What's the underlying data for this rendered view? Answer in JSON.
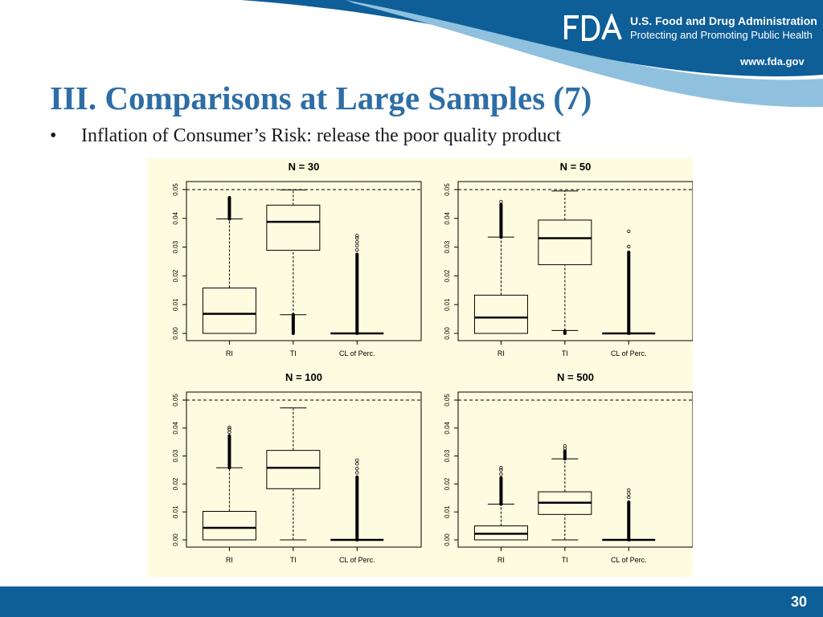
{
  "header": {
    "agency_logo_text": "FDA",
    "agency_name": "U.S. Food and Drug Administration",
    "agency_tagline": "Protecting and Promoting Public Health",
    "website": "www.fda.gov",
    "colors": {
      "band": "#0e5e98",
      "swoosh": "#8fc1de",
      "title": "#2e6ea6"
    }
  },
  "slide": {
    "title": "III. Comparisons at Large Samples (7)",
    "bullet_symbol": "•",
    "bullet": "Inflation of Consumer’s Risk: release the poor quality product",
    "page_number": "30"
  },
  "chart_data": [
    {
      "type": "box",
      "title": "N =  30",
      "categories": [
        "RI",
        "TI",
        "CL of Perc."
      ],
      "ylim": [
        0,
        0.05
      ],
      "yticks": [
        "0.00",
        "0.01",
        "0.02",
        "0.03",
        "0.04",
        "0.05"
      ],
      "reference_line": 0.05,
      "boxes": [
        {
          "category": "RI",
          "lower_whisker": 0.0,
          "q1": 0.0,
          "median": 0.0068,
          "q3": 0.0158,
          "upper_whisker": 0.0398,
          "outliers_from": 0.0398,
          "outliers_to": 0.0472,
          "outliers_side": "upper"
        },
        {
          "category": "TI",
          "lower_whisker": 0.0065,
          "q1": 0.0289,
          "median": 0.0388,
          "q3": 0.0446,
          "upper_whisker": 0.0499,
          "outliers_from": 0.0,
          "outliers_to": 0.0065,
          "outliers_side": "lower"
        },
        {
          "category": "CL of Perc.",
          "lower_whisker": 0.0,
          "q1": 0.0,
          "median": 0.0,
          "q3": 0.0,
          "upper_whisker": 0.0,
          "outliers_from": 0.0,
          "outliers_to": 0.0275,
          "outliers_side": "upper",
          "sparse_outliers": [
            0.029,
            0.0305,
            0.0318,
            0.0332,
            0.034
          ]
        }
      ]
    },
    {
      "type": "box",
      "title": "N =  50",
      "categories": [
        "RI",
        "TI",
        "CL of Perc."
      ],
      "ylim": [
        0,
        0.05
      ],
      "yticks": [
        "0.00",
        "0.01",
        "0.02",
        "0.03",
        "0.04",
        "0.05"
      ],
      "reference_line": 0.05,
      "boxes": [
        {
          "category": "RI",
          "lower_whisker": 0.0,
          "q1": 0.0,
          "median": 0.0055,
          "q3": 0.0133,
          "upper_whisker": 0.0335,
          "outliers_from": 0.0335,
          "outliers_to": 0.0448,
          "outliers_side": "upper",
          "sparse_outliers": [
            0.0458
          ]
        },
        {
          "category": "TI",
          "lower_whisker": 0.001,
          "q1": 0.0239,
          "median": 0.0331,
          "q3": 0.0394,
          "upper_whisker": 0.0495,
          "outliers_from": 0.0,
          "outliers_to": 0.0008,
          "outliers_side": "lower"
        },
        {
          "category": "CL of Perc.",
          "lower_whisker": 0.0,
          "q1": 0.0,
          "median": 0.0,
          "q3": 0.0,
          "upper_whisker": 0.0,
          "outliers_from": 0.0,
          "outliers_to": 0.0282,
          "outliers_side": "upper",
          "sparse_outliers": [
            0.0302,
            0.0355
          ]
        }
      ]
    },
    {
      "type": "box",
      "title": "N =  100",
      "categories": [
        "RI",
        "TI",
        "CL of Perc."
      ],
      "ylim": [
        0,
        0.05
      ],
      "yticks": [
        "0.00",
        "0.01",
        "0.02",
        "0.03",
        "0.04",
        "0.05"
      ],
      "reference_line": 0.05,
      "boxes": [
        {
          "category": "RI",
          "lower_whisker": 0.0,
          "q1": 0.0,
          "median": 0.0043,
          "q3": 0.0102,
          "upper_whisker": 0.0258,
          "outliers_from": 0.0258,
          "outliers_to": 0.0372,
          "outliers_side": "upper",
          "sparse_outliers": [
            0.0385,
            0.0395,
            0.0402
          ]
        },
        {
          "category": "TI",
          "lower_whisker": 0.0,
          "q1": 0.0183,
          "median": 0.0258,
          "q3": 0.032,
          "upper_whisker": 0.0472
        },
        {
          "category": "CL of Perc.",
          "lower_whisker": 0.0,
          "q1": 0.0,
          "median": 0.0,
          "q3": 0.0,
          "upper_whisker": 0.0,
          "outliers_from": 0.0,
          "outliers_to": 0.0225,
          "outliers_side": "upper",
          "sparse_outliers": [
            0.024,
            0.0255,
            0.0272,
            0.0285
          ]
        }
      ]
    },
    {
      "type": "box",
      "title": "N =  500",
      "categories": [
        "RI",
        "TI",
        "CL of Perc."
      ],
      "ylim": [
        0,
        0.05
      ],
      "yticks": [
        "0.00",
        "0.01",
        "0.02",
        "0.03",
        "0.04",
        "0.05"
      ],
      "reference_line": 0.05,
      "boxes": [
        {
          "category": "RI",
          "lower_whisker": 0.0,
          "q1": 0.0,
          "median": 0.0022,
          "q3": 0.005,
          "upper_whisker": 0.0128,
          "outliers_from": 0.0128,
          "outliers_to": 0.0222,
          "outliers_side": "upper",
          "sparse_outliers": [
            0.0235,
            0.025,
            0.0258
          ]
        },
        {
          "category": "TI",
          "lower_whisker": 0.0,
          "q1": 0.0091,
          "median": 0.0133,
          "q3": 0.0172,
          "upper_whisker": 0.029,
          "outliers_from": 0.029,
          "outliers_to": 0.0318,
          "outliers_side": "upper",
          "sparse_outliers": [
            0.0326,
            0.0336
          ]
        },
        {
          "category": "CL of Perc.",
          "lower_whisker": 0.0,
          "q1": 0.0,
          "median": 0.0,
          "q3": 0.0,
          "upper_whisker": 0.0,
          "outliers_from": 0.0,
          "outliers_to": 0.0135,
          "outliers_side": "upper",
          "sparse_outliers": [
            0.0152,
            0.0165,
            0.0178
          ]
        }
      ]
    }
  ]
}
